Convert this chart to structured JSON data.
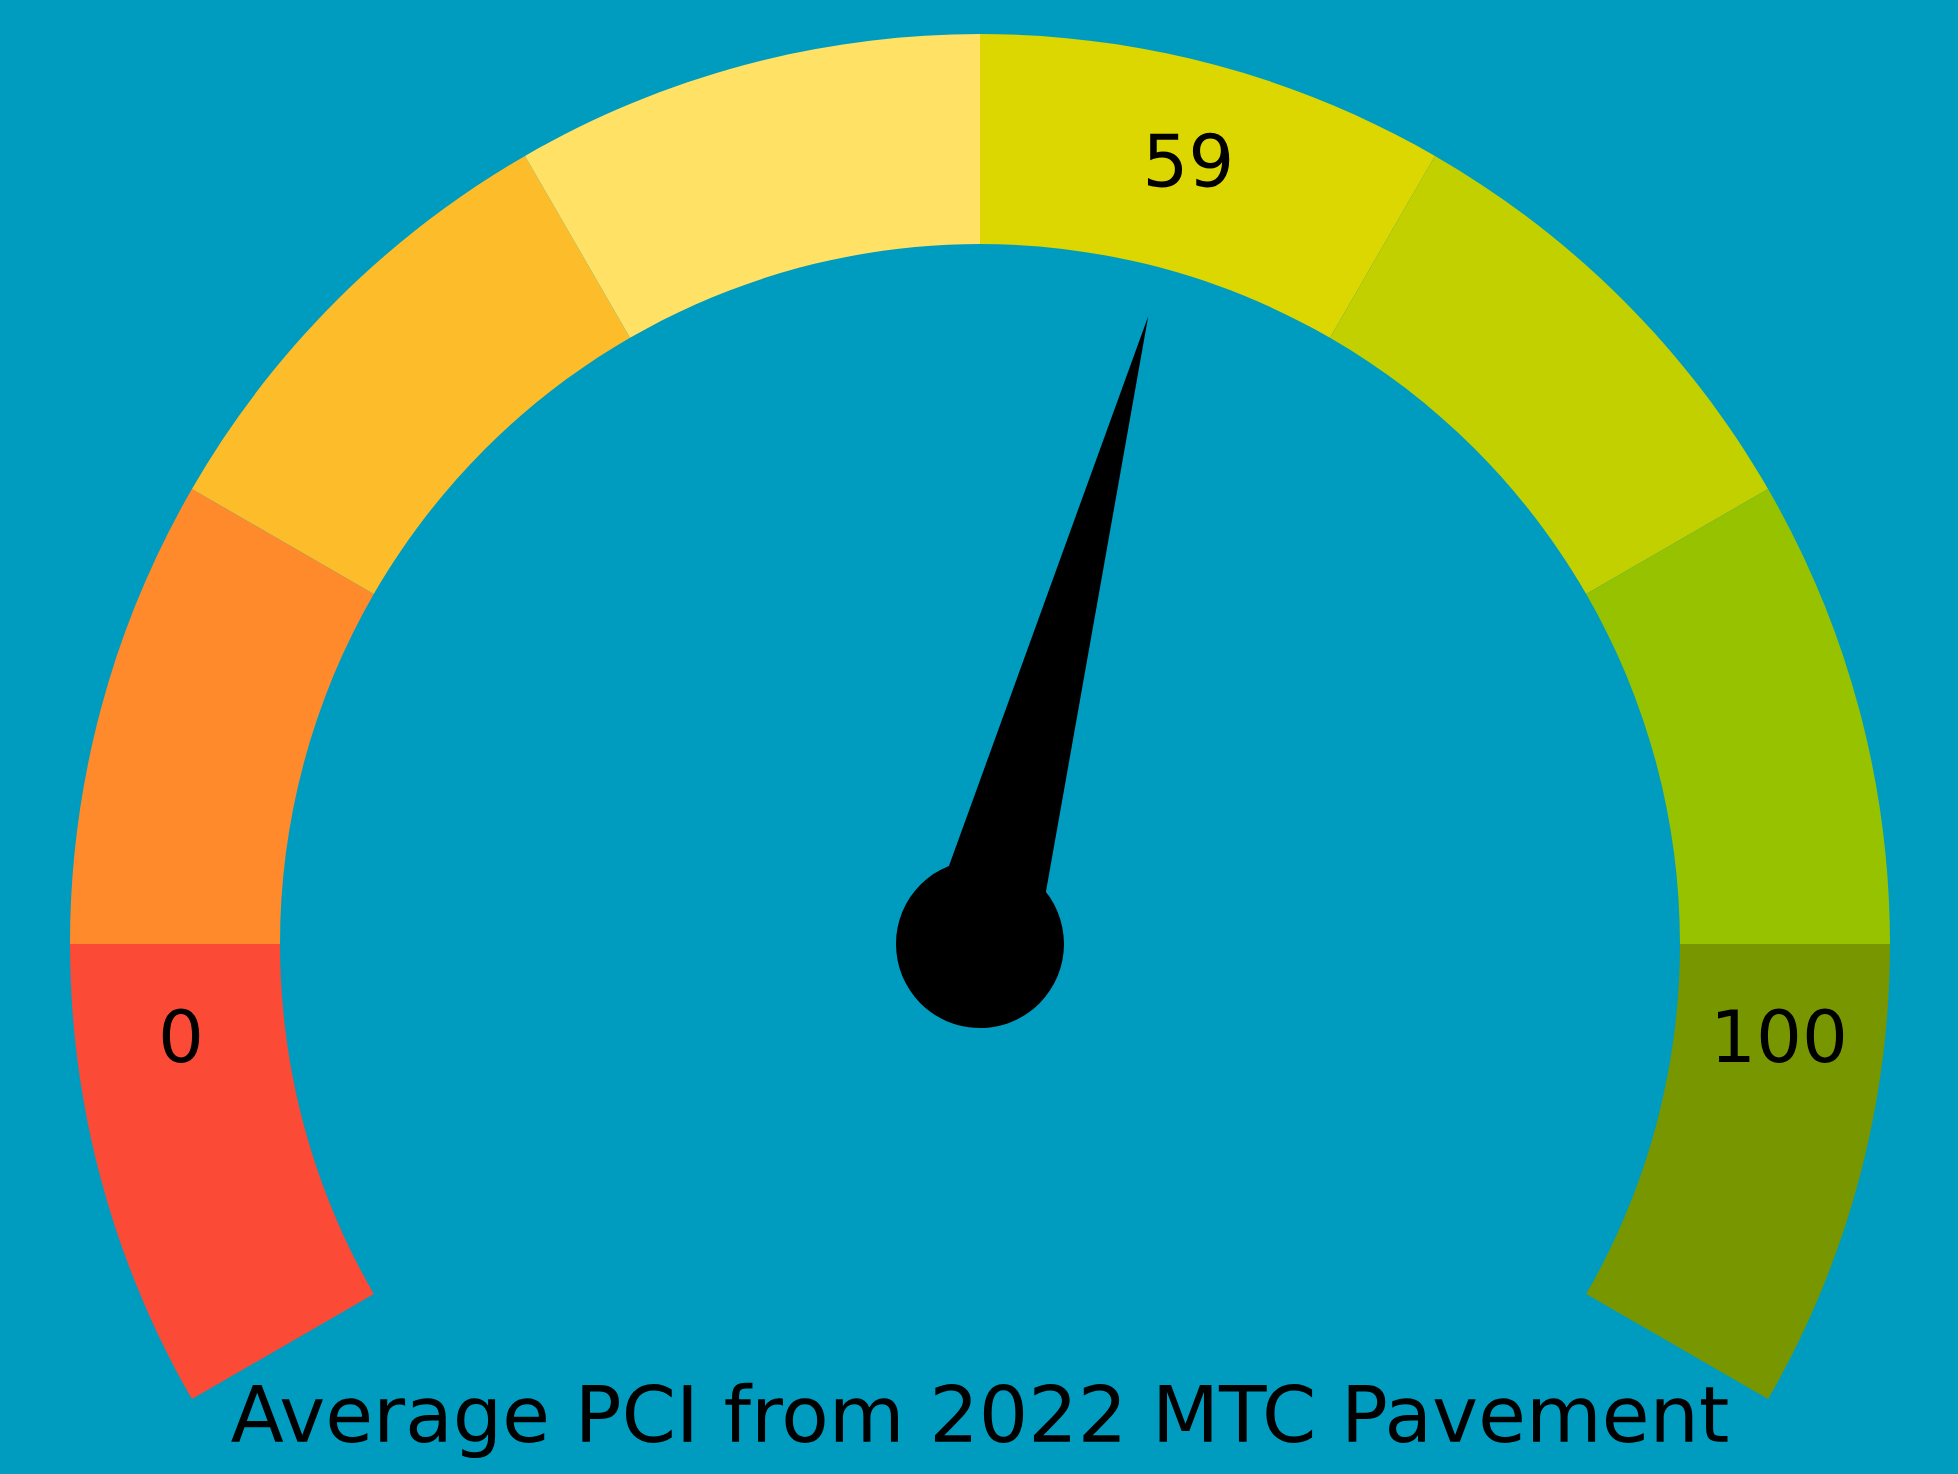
{
  "chart_data": {
    "type": "donut",
    "title": "Average PCI from 2022 MTC Pavement",
    "categories": [
      "0",
      null,
      null,
      null,
      "59",
      null,
      null,
      "100"
    ],
    "values": [
      12.5,
      12.5,
      12.5,
      12.5,
      12.5,
      12.5,
      12.5,
      12.5
    ],
    "colors": [
      "#fb4a36",
      "#fe8a2b",
      "#fdbd2b",
      "#ffe165",
      "#dcd601",
      "#c3d000",
      "#97c200",
      "#779600"
    ],
    "needle": "59"
  }
}
